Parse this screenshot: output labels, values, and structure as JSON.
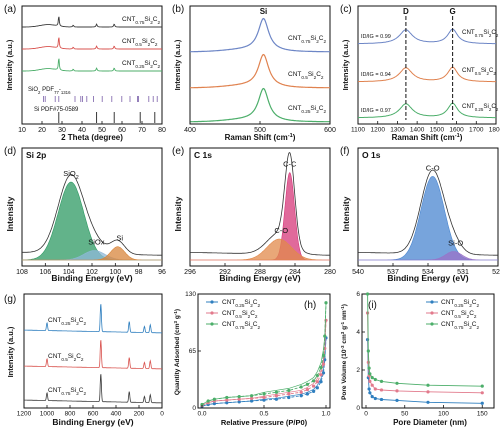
{
  "chart_data": [
    {
      "type": "line",
      "panel": "(a)",
      "xlabel": "2 Theta (degree)",
      "ylabel": "Intensity (a.u.)",
      "xlim": [
        10,
        80
      ],
      "xticks": [
        "10",
        "20",
        "30",
        "40",
        "50",
        "60",
        "70",
        "80"
      ],
      "series": [
        {
          "name": "CNT0.75Si2C2",
          "color": "#3c3c3c",
          "x": [
            10,
            18,
            22,
            24,
            26,
            28,
            30,
            32,
            36,
            40,
            44,
            48,
            52,
            56,
            60,
            64,
            68,
            72,
            76,
            80
          ],
          "y": [
            0.06,
            0.06,
            0.09,
            0.12,
            0.08,
            0.2,
            0.09,
            0.07,
            0.06,
            0.06,
            0.07,
            0.06,
            0.06,
            0.08,
            0.06,
            0.06,
            0.06,
            0.06,
            0.06,
            0.06
          ]
        },
        {
          "name": "CNT0.5Si2C2",
          "color": "#d9534f",
          "x": [
            10,
            18,
            22,
            24,
            26,
            28,
            30,
            32,
            36,
            40,
            44,
            48,
            52,
            56,
            60,
            64,
            68,
            72,
            76,
            80
          ],
          "y": [
            0.06,
            0.06,
            0.09,
            0.12,
            0.08,
            0.22,
            0.09,
            0.07,
            0.06,
            0.06,
            0.07,
            0.06,
            0.06,
            0.08,
            0.06,
            0.06,
            0.06,
            0.06,
            0.06,
            0.06
          ]
        },
        {
          "name": "CNT0.25Si2C2",
          "color": "#4cae6a",
          "x": [
            10,
            18,
            22,
            24,
            26,
            28,
            30,
            32,
            36,
            40,
            44,
            48,
            52,
            56,
            60,
            64,
            68,
            72,
            76,
            80
          ],
          "y": [
            0.06,
            0.06,
            0.1,
            0.13,
            0.09,
            0.25,
            0.09,
            0.07,
            0.06,
            0.06,
            0.07,
            0.06,
            0.06,
            0.08,
            0.06,
            0.06,
            0.06,
            0.06,
            0.06,
            0.06
          ]
        }
      ],
      "references": [
        {
          "name": "SiO2 PDF#77-1316",
          "color": "#7a5fa8",
          "x": [
            20.8,
            21.6,
            26.6,
            28.4,
            36.5,
            39.4,
            40.3,
            42.4,
            45.8,
            50.1,
            54.9,
            59.9,
            64.0,
            67.7,
            68.2,
            73.4,
            75.6,
            77.6
          ]
        },
        {
          "name": "Si PDF#75-0589",
          "color": "#222222",
          "x": [
            28.4,
            47.3,
            56.1,
            69.1,
            76.4
          ]
        }
      ]
    },
    {
      "type": "line",
      "panel": "(b)",
      "xlabel": "Raman Shift (cm-1)",
      "ylabel": "Intensity (a.u.)",
      "xlim": [
        400,
        600
      ],
      "xticks": [
        "400",
        "500",
        "600"
      ],
      "annotations": [
        "Si"
      ],
      "peak": 505,
      "series": [
        {
          "name": "CNT0.75Si2C2",
          "color": "#6d86c6"
        },
        {
          "name": "CNT0.5Si2C2",
          "color": "#e0824f"
        },
        {
          "name": "CNT0.25Si2C2",
          "color": "#4cae6a"
        }
      ]
    },
    {
      "type": "line",
      "panel": "(c)",
      "xlabel": "Raman Shift (cm-1)",
      "ylabel": "Intensity (a.u.)",
      "xlim": [
        1100,
        1800
      ],
      "xticks": [
        "1100",
        "1200",
        "1300",
        "1400",
        "1500",
        "1600",
        "1700",
        "1800"
      ],
      "annotations": [
        "D",
        "G"
      ],
      "peaks": [
        1343,
        1580
      ],
      "series": [
        {
          "name": "CNT0.75Si2C2",
          "color": "#6d86c6",
          "ratio_label": "ID/IG = 0.99"
        },
        {
          "name": "CNT0.5Si2C2",
          "color": "#e0824f",
          "ratio_label": "ID/IG = 0.94"
        },
        {
          "name": "CNT0.25Si2C2",
          "color": "#4cae6a",
          "ratio_label": "ID/IG = 0.97"
        }
      ]
    },
    {
      "type": "area",
      "panel": "(d)",
      "title": "Si 2p",
      "xlabel": "Binding Energy (eV)",
      "ylabel": "Intensity",
      "xlim": [
        108,
        96
      ],
      "xticks": [
        "108",
        "106",
        "104",
        "102",
        "100",
        "98",
        "96"
      ],
      "components": [
        {
          "name": "SiO2",
          "center": 103.8,
          "height": 0.82,
          "width": 1.1,
          "color": "#2e9a63"
        },
        {
          "name": "SiOx",
          "center": 101.8,
          "height": 0.1,
          "width": 0.9,
          "color": "#8fb8d8"
        },
        {
          "name": "Si",
          "center": 99.8,
          "height": 0.14,
          "width": 0.6,
          "color": "#d8863c"
        }
      ]
    },
    {
      "type": "area",
      "panel": "(e)",
      "title": "C 1s",
      "xlabel": "Binding Energy (eV)",
      "ylabel": "Intensity",
      "xlim": [
        296,
        280
      ],
      "xticks": [
        "296",
        "292",
        "288",
        "284",
        "280"
      ],
      "components": [
        {
          "name": "C-C",
          "center": 284.6,
          "height": 0.92,
          "width": 0.55,
          "color": "#d6387a"
        },
        {
          "name": "C-O",
          "center": 285.8,
          "height": 0.22,
          "width": 1.4,
          "color": "#e1894b"
        }
      ]
    },
    {
      "type": "area",
      "panel": "(f)",
      "title": "O 1s",
      "xlabel": "Binding Energy (eV)",
      "ylabel": "Intensity",
      "xlim": [
        540,
        528
      ],
      "xticks": [
        "540",
        "537",
        "534",
        "531",
        "528"
      ],
      "components": [
        {
          "name": "C-O",
          "center": 533.6,
          "height": 0.88,
          "width": 1.0,
          "color": "#4a86d0"
        },
        {
          "name": "Si-O",
          "center": 531.8,
          "height": 0.09,
          "width": 0.7,
          "color": "#9a72c8"
        }
      ]
    },
    {
      "type": "line",
      "panel": "(g)",
      "xlabel": "Binding Energy (eV)",
      "ylabel": "Intensity (a.u.)",
      "xlim": [
        1200,
        0
      ],
      "xticks": [
        "1200",
        "1000",
        "800",
        "600",
        "400",
        "200",
        "0"
      ],
      "series": [
        {
          "name": "CNT0.25Si2C2",
          "color": "#2f7fbf",
          "offset": 2
        },
        {
          "name": "CNT0.5Si2C2",
          "color": "#d9534f",
          "offset": 1
        },
        {
          "name": "CNT0.75Si2C2",
          "color": "#3c3c3c",
          "offset": 0
        }
      ],
      "survey_peaks": [
        {
          "x": 1000,
          "h": 0.28
        },
        {
          "x": 532,
          "h": 1.0
        },
        {
          "x": 285,
          "h": 0.38
        },
        {
          "x": 153,
          "h": 0.22
        },
        {
          "x": 102,
          "h": 0.28
        }
      ]
    },
    {
      "type": "line",
      "panel": "(h)",
      "xlabel": "Relative Pressure (P/P0)",
      "ylabel": "Quantity Adsorbed (cm3 g-1)",
      "xlim": [
        0,
        1.0
      ],
      "ylim": [
        0,
        130
      ],
      "xticks": [
        "0.0",
        "0.5",
        "1.0"
      ],
      "yticks": [
        "0",
        "65",
        "130"
      ],
      "legend": "top-left",
      "series": [
        {
          "name": "CNT0.25Si2C2",
          "color": "#2f7fbf",
          "x": [
            0.0,
            0.05,
            0.1,
            0.2,
            0.3,
            0.4,
            0.5,
            0.6,
            0.7,
            0.8,
            0.85,
            0.9,
            0.93,
            0.96,
            0.98,
            0.99,
            1.0
          ],
          "y": [
            2,
            4,
            5,
            6,
            7,
            8,
            9,
            10,
            12,
            14,
            16,
            19,
            23,
            30,
            40,
            55,
            80
          ]
        },
        {
          "name": "CNT0.5Si2C2",
          "color": "#e27a8c",
          "x": [
            0.0,
            0.05,
            0.1,
            0.2,
            0.3,
            0.4,
            0.5,
            0.6,
            0.7,
            0.8,
            0.85,
            0.9,
            0.93,
            0.96,
            0.98,
            0.99,
            1.0
          ],
          "y": [
            3,
            6,
            8,
            9,
            10,
            11,
            12,
            14,
            16,
            18,
            21,
            25,
            30,
            38,
            50,
            68,
            100
          ]
        },
        {
          "name": "CNT0.75Si2C2",
          "color": "#4cae6a",
          "x": [
            0.0,
            0.05,
            0.1,
            0.2,
            0.3,
            0.4,
            0.5,
            0.6,
            0.7,
            0.8,
            0.85,
            0.9,
            0.93,
            0.96,
            0.98,
            0.99,
            1.0
          ],
          "y": [
            4,
            8,
            10,
            12,
            13,
            14,
            16,
            18,
            20,
            24,
            27,
            31,
            37,
            46,
            60,
            82,
            120
          ]
        }
      ]
    },
    {
      "type": "line",
      "panel": "(i)",
      "xlabel": "Pore Diameter (nm)",
      "ylabel": "Pore Volume (10-3 cm3 g-1 nm-1)",
      "xlim": [
        0,
        160
      ],
      "ylim": [
        0,
        6
      ],
      "xticks": [
        "0",
        "50",
        "100",
        "150"
      ],
      "yticks": [
        "0",
        "2",
        "4",
        "6"
      ],
      "legend": "top-right",
      "series": [
        {
          "name": "CNT0.25Si2C2",
          "color": "#2f7fbf",
          "x": [
            2,
            3,
            4,
            5,
            8,
            12,
            20,
            40,
            80,
            150
          ],
          "y": [
            3.6,
            1.6,
            1.0,
            0.8,
            0.6,
            0.5,
            0.45,
            0.4,
            0.3,
            0.25
          ]
        },
        {
          "name": "CNT0.5Si2C2",
          "color": "#e27a8c",
          "x": [
            2,
            3,
            4,
            5,
            8,
            12,
            20,
            40,
            80,
            150
          ],
          "y": [
            5.0,
            2.4,
            1.7,
            1.4,
            1.2,
            1.0,
            0.95,
            0.9,
            0.85,
            0.8
          ]
        },
        {
          "name": "CNT0.75Si2C2",
          "color": "#4cae6a",
          "x": [
            2,
            3,
            4,
            5,
            8,
            12,
            20,
            40,
            80,
            150
          ],
          "y": [
            6.0,
            3.0,
            2.1,
            1.8,
            1.6,
            1.5,
            1.4,
            1.3,
            1.2,
            1.15
          ]
        }
      ]
    }
  ]
}
